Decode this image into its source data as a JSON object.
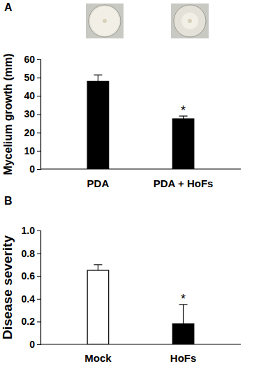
{
  "chart_data": [
    {
      "type": "bar",
      "title": "A",
      "y_label": "Mycelium growth (mm)",
      "categories": [
        "PDA",
        "PDA + HoFs"
      ],
      "values": [
        48,
        27.5
      ],
      "errors": [
        3.5,
        1.5
      ],
      "colors": [
        "#000000",
        "#000000"
      ],
      "ylim": [
        0,
        60
      ],
      "yticks": [
        0,
        10,
        20,
        30,
        40,
        50,
        60
      ],
      "annotations": [
        {
          "category": "PDA + HoFs",
          "text": "*"
        }
      ]
    },
    {
      "type": "bar",
      "title": "B",
      "y_label": "Disease severity",
      "categories": [
        "Mock",
        "HoFs"
      ],
      "values": [
        0.65,
        0.18
      ],
      "errors": [
        0.05,
        0.17
      ],
      "colors": [
        "#ffffff",
        "#000000"
      ],
      "ylim": [
        0,
        1.0
      ],
      "yticks": [
        0,
        0.2,
        0.4,
        0.6,
        0.8,
        {
          "value": 1.0,
          "label": "1.0"
        }
      ],
      "annotations": [
        {
          "category": "HoFs",
          "text": "*"
        }
      ]
    }
  ]
}
